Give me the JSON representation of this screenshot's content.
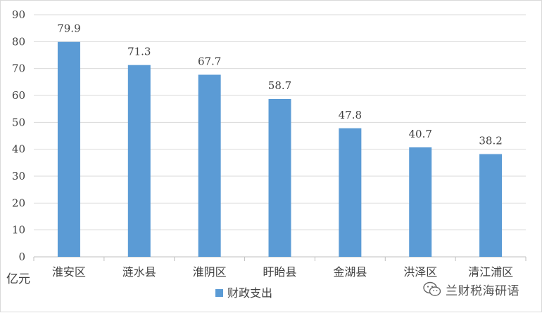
{
  "chart_data": {
    "type": "bar",
    "categories": [
      "淮安区",
      "涟水县",
      "淮阴区",
      "盱眙县",
      "金湖县",
      "洪泽区",
      "清江浦区"
    ],
    "series": [
      {
        "name": "财政支出",
        "values": [
          79.9,
          71.3,
          67.7,
          58.7,
          47.8,
          40.7,
          38.2
        ]
      }
    ],
    "ylabel": "亿元",
    "ylim": [
      0,
      90
    ],
    "yticks": [
      0,
      10,
      20,
      30,
      40,
      50,
      60,
      70,
      80,
      90
    ],
    "grid": true,
    "legend_position": "bottom-center",
    "data_labels": true,
    "colors": {
      "bar": "#5b9bd5",
      "grid": "#d9d9d9",
      "axis": "#bfbfbf",
      "text": "#404040"
    }
  },
  "watermark": {
    "text": "兰财税海研语",
    "icon": "wechat-icon"
  }
}
